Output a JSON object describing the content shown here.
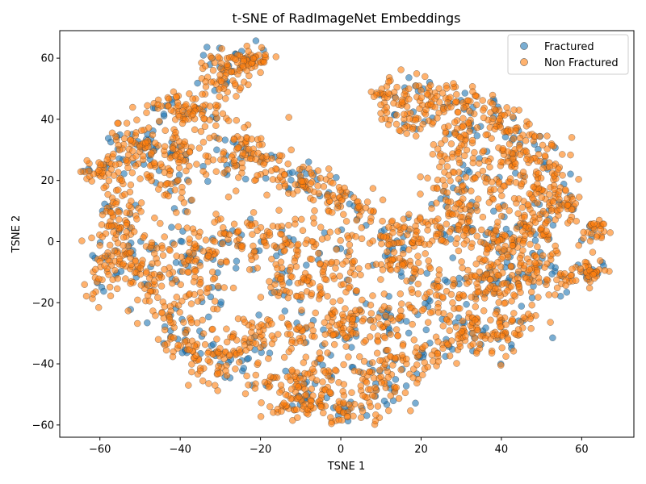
{
  "chart_data": {
    "type": "scatter",
    "title": "t-SNE of RadImageNet Embeddings",
    "xlabel": "TSNE 1",
    "ylabel": "TSNE 2",
    "xlim": [
      -70,
      73
    ],
    "ylim": [
      -64,
      69
    ],
    "xticks": [
      -60,
      -40,
      -20,
      0,
      20,
      40,
      60
    ],
    "yticks": [
      -60,
      -40,
      -20,
      0,
      20,
      40,
      60
    ],
    "grid": false,
    "legend_position": "top-right",
    "series": [
      {
        "name": "Fractured",
        "color": "#1f77b4",
        "point_count": 600
      },
      {
        "name": "Non Fractured",
        "color": "#ff7f0e",
        "point_count": 2600
      }
    ],
    "clusters": [
      {
        "x": -28,
        "y": 55,
        "sx": 3.5,
        "sy": 4,
        "w": 4
      },
      {
        "x": -22,
        "y": 60,
        "sx": 2.5,
        "sy": 2,
        "w": 2
      },
      {
        "x": -40,
        "y": 44,
        "sx": 4,
        "sy": 2.5,
        "w": 3
      },
      {
        "x": -34,
        "y": 40,
        "sx": 3,
        "sy": 4,
        "w": 2
      },
      {
        "x": -52,
        "y": 30,
        "sx": 4,
        "sy": 5,
        "w": 4
      },
      {
        "x": -60,
        "y": 23,
        "sx": 3,
        "sy": 2,
        "w": 2
      },
      {
        "x": -42,
        "y": 30,
        "sx": 4,
        "sy": 4,
        "w": 3
      },
      {
        "x": -25,
        "y": 28,
        "sx": 5,
        "sy": 4,
        "w": 4
      },
      {
        "x": -42,
        "y": 18,
        "sx": 3,
        "sy": 4,
        "w": 2
      },
      {
        "x": -55,
        "y": 8,
        "sx": 3,
        "sy": 6,
        "w": 4
      },
      {
        "x": -57,
        "y": -8,
        "sx": 3,
        "sy": 6,
        "w": 4
      },
      {
        "x": -47,
        "y": -10,
        "sx": 3.5,
        "sy": 6,
        "w": 4
      },
      {
        "x": -36,
        "y": -2,
        "sx": 4,
        "sy": 4,
        "w": 3
      },
      {
        "x": -25,
        "y": 2,
        "sx": 5,
        "sy": 5,
        "w": 4
      },
      {
        "x": -35,
        "y": -15,
        "sx": 4,
        "sy": 5,
        "w": 3
      },
      {
        "x": -40,
        "y": -30,
        "sx": 4,
        "sy": 5,
        "w": 3
      },
      {
        "x": -30,
        "y": -40,
        "sx": 5,
        "sy": 4,
        "w": 4
      },
      {
        "x": -22,
        "y": -32,
        "sx": 4,
        "sy": 5,
        "w": 3
      },
      {
        "x": -15,
        "y": -45,
        "sx": 4,
        "sy": 3,
        "w": 2
      },
      {
        "x": -10,
        "y": 20,
        "sx": 4,
        "sy": 3,
        "w": 3
      },
      {
        "x": -3,
        "y": 15,
        "sx": 4,
        "sy": 3,
        "w": 2
      },
      {
        "x": 2,
        "y": 8,
        "sx": 4,
        "sy": 4,
        "w": 2
      },
      {
        "x": -14,
        "y": 0,
        "sx": 5,
        "sy": 4,
        "w": 3
      },
      {
        "x": -12,
        "y": -14,
        "sx": 4,
        "sy": 4,
        "w": 3
      },
      {
        "x": 0,
        "y": -10,
        "sx": 4,
        "sy": 5,
        "w": 3
      },
      {
        "x": -8,
        "y": -30,
        "sx": 4,
        "sy": 4,
        "w": 3
      },
      {
        "x": 3,
        "y": -28,
        "sx": 3.5,
        "sy": 4,
        "w": 3
      },
      {
        "x": -5,
        "y": -45,
        "sx": 4,
        "sy": 4,
        "w": 3
      },
      {
        "x": -10,
        "y": -53,
        "sx": 4,
        "sy": 2.5,
        "w": 3
      },
      {
        "x": 2,
        "y": -55,
        "sx": 4,
        "sy": 2.5,
        "w": 3
      },
      {
        "x": 10,
        "y": -48,
        "sx": 4,
        "sy": 4,
        "w": 3
      },
      {
        "x": 14,
        "y": -40,
        "sx": 3.5,
        "sy": 3,
        "w": 2
      },
      {
        "x": 12,
        "y": -25,
        "sx": 4,
        "sy": 4,
        "w": 3
      },
      {
        "x": 22,
        "y": -38,
        "sx": 4,
        "sy": 3,
        "w": 2
      },
      {
        "x": 32,
        "y": -30,
        "sx": 4,
        "sy": 4,
        "w": 3
      },
      {
        "x": 41,
        "y": -27,
        "sx": 4,
        "sy": 5,
        "w": 3
      },
      {
        "x": 44,
        "y": -12,
        "sx": 4,
        "sy": 5,
        "w": 3
      },
      {
        "x": 50,
        "y": -8,
        "sx": 3,
        "sy": 5,
        "w": 3
      },
      {
        "x": 35,
        "y": -12,
        "sx": 4,
        "sy": 4,
        "w": 3
      },
      {
        "x": 25,
        "y": -18,
        "sx": 4,
        "sy": 4,
        "w": 3
      },
      {
        "x": 15,
        "y": -8,
        "sx": 4,
        "sy": 4,
        "w": 3
      },
      {
        "x": 12,
        "y": 2,
        "sx": 3,
        "sy": 3,
        "w": 2
      },
      {
        "x": 20,
        "y": 2,
        "sx": 4,
        "sy": 3,
        "w": 2
      },
      {
        "x": 30,
        "y": 5,
        "sx": 4,
        "sy": 4,
        "w": 3
      },
      {
        "x": 40,
        "y": 0,
        "sx": 4,
        "sy": 4,
        "w": 3
      },
      {
        "x": 48,
        "y": 5,
        "sx": 3,
        "sy": 4,
        "w": 3
      },
      {
        "x": 26,
        "y": 16,
        "sx": 3,
        "sy": 4,
        "w": 2
      },
      {
        "x": 30,
        "y": 25,
        "sx": 4,
        "sy": 4,
        "w": 3
      },
      {
        "x": 40,
        "y": 18,
        "sx": 4,
        "sy": 5,
        "w": 3
      },
      {
        "x": 52,
        "y": 20,
        "sx": 3,
        "sy": 6,
        "w": 4
      },
      {
        "x": 57,
        "y": 12,
        "sx": 2.5,
        "sy": 3,
        "w": 2
      },
      {
        "x": 46,
        "y": 30,
        "sx": 4,
        "sy": 4,
        "w": 3
      },
      {
        "x": 40,
        "y": 40,
        "sx": 3,
        "sy": 3,
        "w": 2
      },
      {
        "x": 32,
        "y": 43,
        "sx": 4,
        "sy": 4,
        "w": 3
      },
      {
        "x": 22,
        "y": 48,
        "sx": 4,
        "sy": 3,
        "w": 3
      },
      {
        "x": 12,
        "y": 48,
        "sx": 3,
        "sy": 4,
        "w": 2
      },
      {
        "x": 18,
        "y": 40,
        "sx": 3,
        "sy": 3,
        "w": 2
      },
      {
        "x": 30,
        "y": 35,
        "sx": 3,
        "sy": 3,
        "w": 2
      },
      {
        "x": 63,
        "y": 4,
        "sx": 2,
        "sy": 3,
        "w": 2
      },
      {
        "x": 62,
        "y": -10,
        "sx": 2,
        "sy": 2,
        "w": 2
      },
      {
        "x": 57,
        "y": -12,
        "sx": 2,
        "sy": 1.5,
        "w": 1
      }
    ]
  }
}
